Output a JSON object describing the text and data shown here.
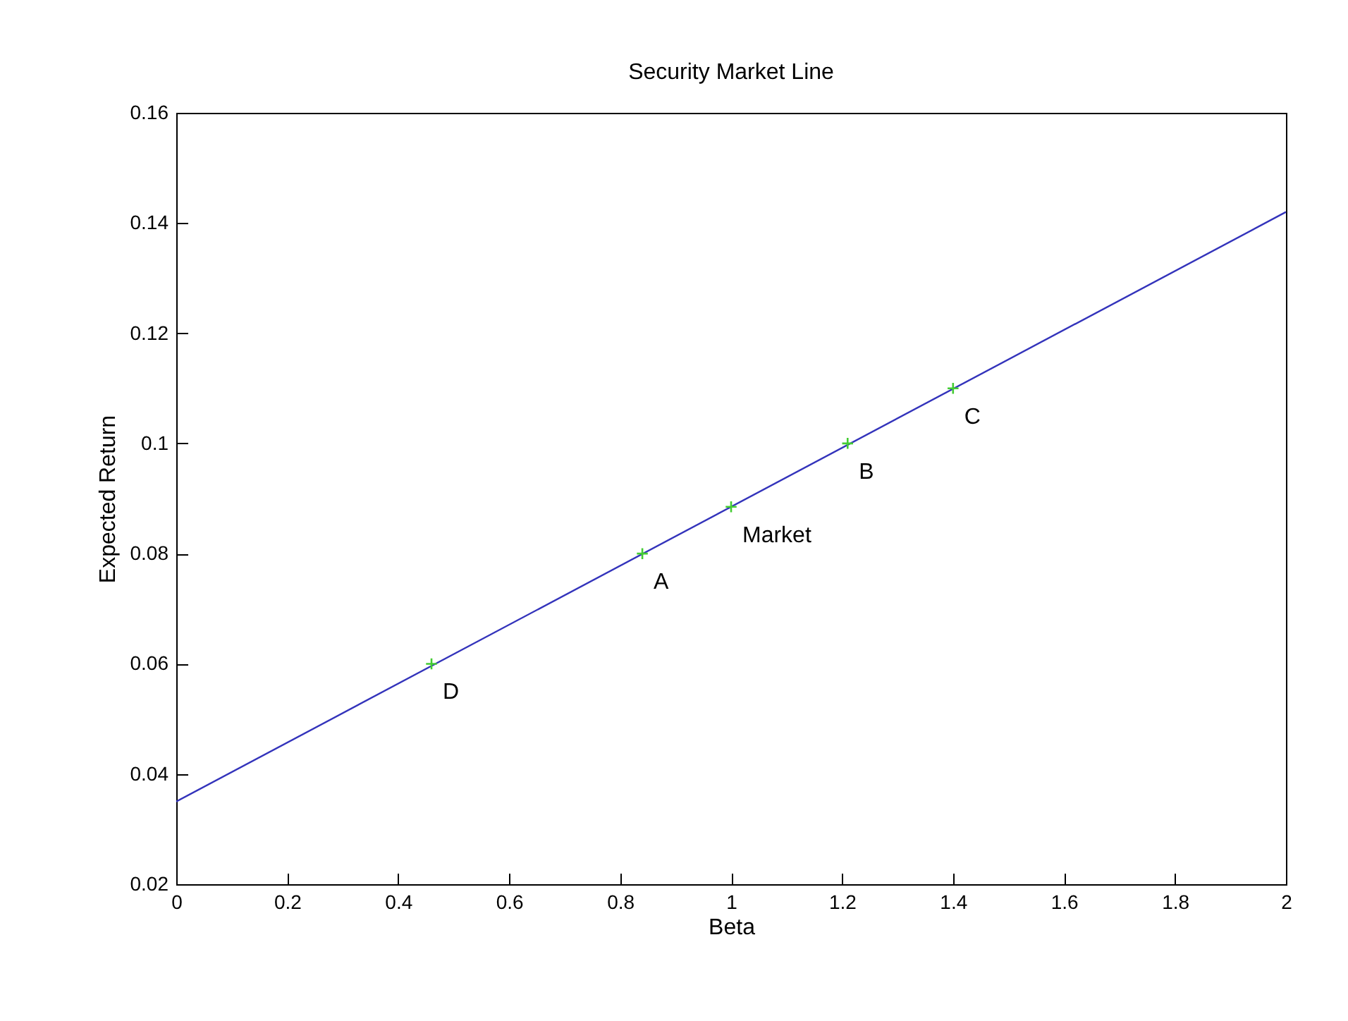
{
  "chart_data": {
    "type": "scatter",
    "title": "Security Market Line",
    "xlabel": "Beta",
    "ylabel": "Expected Return",
    "xlim": [
      0,
      2
    ],
    "xticks": [
      0,
      0.2,
      0.4,
      0.6,
      0.8,
      1,
      1.2,
      1.4,
      1.6,
      1.8,
      2
    ],
    "ylim": [
      0.02,
      0.16
    ],
    "yticks": [
      0.02,
      0.04,
      0.06,
      0.08,
      0.1,
      0.12,
      0.14,
      0.16
    ],
    "grid": false,
    "series": [
      {
        "type": "line",
        "color": "#3333bb",
        "x": [
          0,
          2
        ],
        "values": [
          0.035,
          0.142
        ],
        "marker": "none",
        "line_style": "solid"
      },
      {
        "color": "#44cc33",
        "x": [
          0.46,
          0.84,
          1,
          1.21,
          1.4
        ],
        "values": [
          0.06,
          0.08,
          0.0885,
          0.1,
          0.11
        ],
        "marker": "cross"
      }
    ],
    "annotations": [
      {
        "text": "D",
        "x": 0.46,
        "y": 0.06
      },
      {
        "text": "A",
        "x": 0.84,
        "y": 0.08
      },
      {
        "text": "Market",
        "x": 1,
        "y": 0.0885
      },
      {
        "text": "B",
        "x": 1.21,
        "y": 0.1
      },
      {
        "text": "C",
        "x": 1.4,
        "y": 0.11
      }
    ]
  }
}
